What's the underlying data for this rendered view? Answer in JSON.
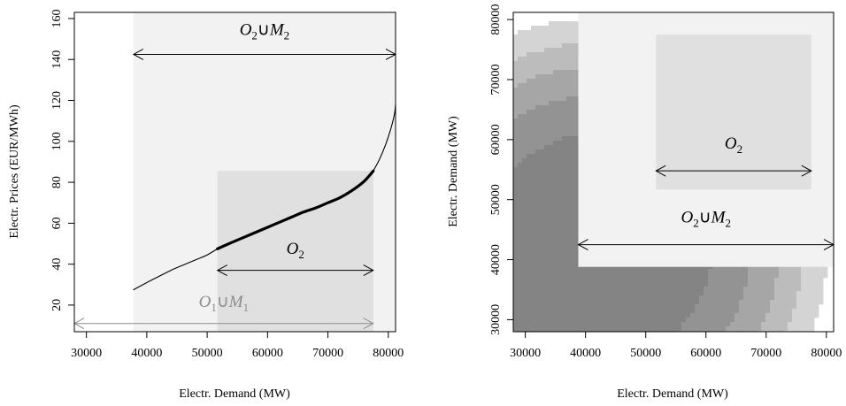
{
  "chart_data": [
    {
      "type": "line",
      "xlabel": "Electr. Demand (MW)",
      "ylabel": "Electr. Prices (EUR/MWh)",
      "xlim": [
        28000,
        81200
      ],
      "ylim": [
        7,
        163
      ],
      "xticks": [
        30000,
        40000,
        50000,
        60000,
        70000,
        80000
      ],
      "yticks": [
        20,
        40,
        60,
        80,
        100,
        120,
        140,
        160
      ],
      "regions": [
        {
          "name": "O2 ∪ M2",
          "x": [
            37800,
            81200
          ],
          "y": [
            7,
            163
          ],
          "color": "#f2f2f2"
        },
        {
          "name": "O2",
          "x": [
            51700,
            77500
          ],
          "y": [
            7,
            85.5
          ],
          "color": "#e0e0e0"
        }
      ],
      "series": [
        {
          "style": "thin",
          "x": [
            37800,
            40000,
            42000,
            44000,
            46000,
            48000,
            50000,
            51700
          ],
          "y": [
            27.5,
            31,
            34,
            37,
            39.5,
            42,
            44.5,
            47.5
          ]
        },
        {
          "style": "thick",
          "x": [
            51700,
            54000,
            56000,
            58000,
            60000,
            62000,
            64000,
            66000,
            68000,
            70000,
            72000,
            74000,
            76000,
            77500
          ],
          "y": [
            47.5,
            50.5,
            53,
            55.5,
            58,
            60.5,
            63,
            65.5,
            67.5,
            70,
            72.5,
            76,
            80.5,
            85.5
          ]
        },
        {
          "style": "thin",
          "x": [
            77500,
            78500,
            79500,
            80300,
            81000,
            81200
          ],
          "y": [
            85.5,
            91,
            98,
            105,
            113,
            118
          ]
        }
      ],
      "annotations": [
        {
          "label_main": "O",
          "sub1": "2",
          "cup": "∪",
          "label2": "M",
          "sub2": "2",
          "x1": 37800,
          "x2": 81200,
          "y_arrow": 142.5,
          "y_text": 152,
          "color": "#000000"
        },
        {
          "label_main": "O",
          "sub1": "2",
          "x1": 51700,
          "x2": 77500,
          "y_arrow": 37,
          "y_text": 45,
          "color": "#000000"
        },
        {
          "label_main": "O",
          "sub1": "1",
          "cup": "∪",
          "label2": "M",
          "sub2": "1",
          "x1": 28000,
          "x2": 77500,
          "y_arrow": 11,
          "y_text": 19,
          "color": "#8c8c8c"
        }
      ]
    },
    {
      "type": "heatmap",
      "xlabel": "Electr. Demand (MW)",
      "ylabel": "Electr. Demand (MW)",
      "xlim": [
        28000,
        81200
      ],
      "ylim": [
        28000,
        81200
      ],
      "xticks": [
        30000,
        40000,
        50000,
        60000,
        70000,
        80000
      ],
      "yticks": [
        30000,
        40000,
        50000,
        60000,
        70000,
        80000
      ],
      "contour_levels": [
        {
          "level": 1,
          "color": "#d4d4d4"
        },
        {
          "level": 2,
          "color": "#bcbcbc"
        },
        {
          "level": 3,
          "color": "#a6a6a6"
        },
        {
          "level": 4,
          "color": "#939393"
        },
        {
          "level": 5,
          "color": "#848484"
        }
      ],
      "regions": [
        {
          "name": "O2 ∪ M2",
          "x": [
            38800,
            81200
          ],
          "y": [
            38800,
            81200
          ],
          "color": "#f2f2f2"
        },
        {
          "name": "O2",
          "x": [
            51700,
            77500
          ],
          "y": [
            51700,
            77500
          ],
          "color": "#e0e0e0"
        }
      ],
      "annotations": [
        {
          "label_main": "O",
          "sub1": "2",
          "x1": 51700,
          "x2": 77500,
          "y_arrow": 54800,
          "y_text": 58500,
          "color": "#000000"
        },
        {
          "label_main": "O",
          "sub1": "2",
          "cup": "∪",
          "label2": "M",
          "sub2": "2",
          "x1": 38800,
          "x2": 81200,
          "y_arrow": 42500,
          "y_text": 46200,
          "color": "#000000"
        }
      ]
    }
  ]
}
